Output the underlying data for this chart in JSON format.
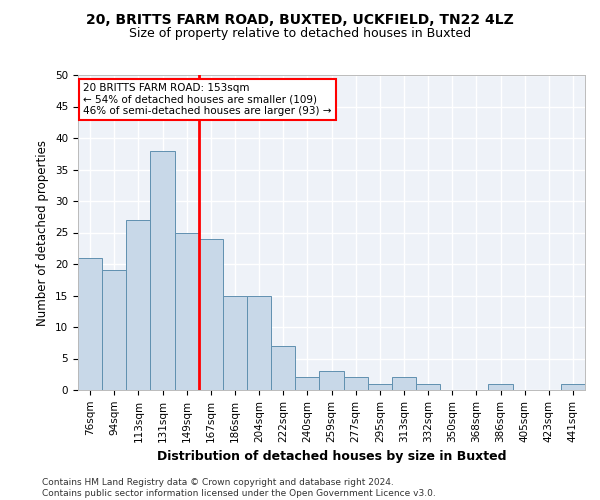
{
  "title1": "20, BRITTS FARM ROAD, BUXTED, UCKFIELD, TN22 4LZ",
  "title2": "Size of property relative to detached houses in Buxted",
  "xlabel": "Distribution of detached houses by size in Buxted",
  "ylabel": "Number of detached properties",
  "footnote": "Contains HM Land Registry data © Crown copyright and database right 2024.\nContains public sector information licensed under the Open Government Licence v3.0.",
  "categories": [
    "76sqm",
    "94sqm",
    "113sqm",
    "131sqm",
    "149sqm",
    "167sqm",
    "186sqm",
    "204sqm",
    "222sqm",
    "240sqm",
    "259sqm",
    "277sqm",
    "295sqm",
    "313sqm",
    "332sqm",
    "350sqm",
    "368sqm",
    "386sqm",
    "405sqm",
    "423sqm",
    "441sqm"
  ],
  "values": [
    21,
    19,
    27,
    38,
    25,
    24,
    15,
    15,
    7,
    2,
    3,
    2,
    1,
    2,
    1,
    0,
    0,
    1,
    0,
    0,
    1
  ],
  "bar_color": "#c8d8e8",
  "bar_edge_color": "#6090b0",
  "vline_x_index": 4,
  "vline_color": "red",
  "annotation_text": "20 BRITTS FARM ROAD: 153sqm\n← 54% of detached houses are smaller (109)\n46% of semi-detached houses are larger (93) →",
  "annotation_box_color": "white",
  "annotation_box_edge": "red",
  "ylim": [
    0,
    50
  ],
  "yticks": [
    0,
    5,
    10,
    15,
    20,
    25,
    30,
    35,
    40,
    45,
    50
  ],
  "bg_color": "#eef2f8",
  "grid_color": "white",
  "title1_fontsize": 10,
  "title2_fontsize": 9,
  "axis_label_fontsize": 8.5,
  "tick_fontsize": 7.5,
  "annotation_fontsize": 7.5,
  "footnote_fontsize": 6.5
}
